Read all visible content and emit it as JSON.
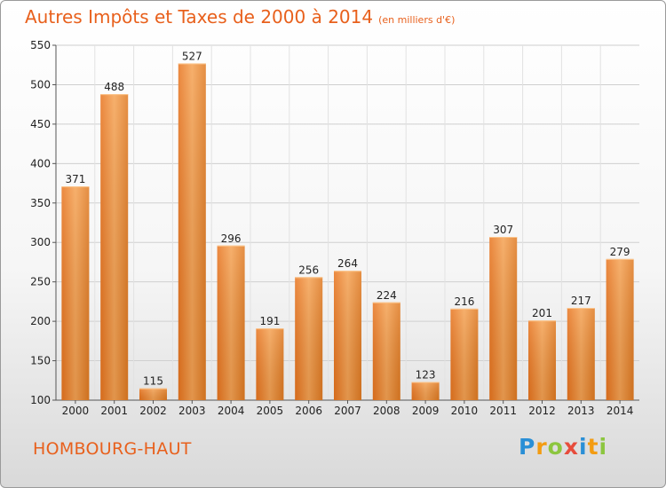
{
  "title": "Autres Impôts et Taxes de 2000 à 2014",
  "title_unit": "(en milliers d'€)",
  "town": "HOMBOURG-HAUT",
  "logo": {
    "letters": [
      "P",
      "r",
      "o",
      "x",
      "i",
      "t",
      "i"
    ],
    "colors": [
      "#2a8fd6",
      "#f39c12",
      "#8cc63f",
      "#e74c3c",
      "#2a8fd6",
      "#f39c12",
      "#8cc63f"
    ]
  },
  "chart_data": {
    "type": "bar",
    "categories": [
      "2000",
      "2001",
      "2002",
      "2003",
      "2004",
      "2005",
      "2006",
      "2007",
      "2008",
      "2009",
      "2010",
      "2011",
      "2012",
      "2013",
      "2014"
    ],
    "values": [
      371,
      488,
      115,
      527,
      296,
      191,
      256,
      264,
      224,
      123,
      216,
      307,
      201,
      217,
      279
    ],
    "title": "Autres Impôts et Taxes de 2000 à 2014",
    "xlabel": "",
    "ylabel": "",
    "ylim": [
      100,
      550
    ],
    "yticks": [
      100,
      150,
      200,
      250,
      300,
      350,
      400,
      450,
      500,
      550
    ],
    "grid": true,
    "bar_color": "#f08a2c"
  }
}
